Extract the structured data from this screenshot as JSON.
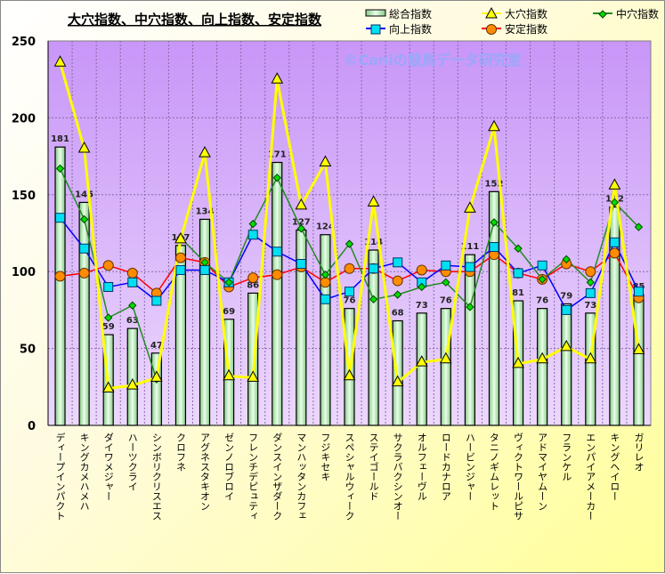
{
  "chart_data": {
    "type": "bar",
    "title": "大穴指数、中穴指数、向上指数、安定指数",
    "watermark": "©Caniの競馬データ研究室",
    "ylim": [
      0,
      250
    ],
    "yticks": [
      0,
      50,
      100,
      150,
      200,
      250
    ],
    "grid": true,
    "legend_position": "top-right",
    "categories": [
      "ディープインパクト",
      "キングカメハメハ",
      "ダイワメジャー",
      "ハーツクライ",
      "シンボリクリスエス",
      "クロフネ",
      "アグネスタキオン",
      "ゼンノロブロイ",
      "フレンチデピュティ",
      "ダンスインザダーク",
      "マンハッタンカフェ",
      "フジキセキ",
      "スペシャルウィーク",
      "ステイゴールド",
      "サクラバクシンオー",
      "オルフェーヴル",
      "ロードカナロア",
      "ハービンジャー",
      "タニノギムレット",
      "ヴィクトワールピサ",
      "アドマイヤムーン",
      "フランケル",
      "エンパイアメーカー",
      "キングヘイロー",
      "ガリレオ"
    ],
    "series": [
      {
        "name": "総合指数",
        "type": "bar",
        "color": "#c8f0c8",
        "values": [
          181,
          145,
          59,
          63,
          47,
          117,
          134,
          69,
          86,
          171,
          127,
          124,
          76,
          114,
          68,
          73,
          76,
          111,
          152,
          81,
          76,
          79,
          73,
          142,
          85
        ]
      },
      {
        "name": "大穴指数",
        "type": "line",
        "color": "#ffff00",
        "marker": "triangle",
        "values": [
          236,
          180,
          24,
          26,
          31,
          121,
          177,
          32,
          31,
          225,
          143,
          171,
          32,
          145,
          28,
          41,
          43,
          141,
          194,
          40,
          43,
          51,
          43,
          156,
          49
        ]
      },
      {
        "name": "中穴指数",
        "type": "line",
        "color": "#228b22",
        "marker": "diamond",
        "values": [
          167,
          134,
          70,
          78,
          30,
          122,
          106,
          93,
          131,
          161,
          128,
          98,
          118,
          82,
          85,
          90,
          93,
          77,
          132,
          115,
          95,
          108,
          93,
          145,
          129
        ]
      },
      {
        "name": "向上指数",
        "type": "line",
        "color": "#0000ff",
        "marker": "square",
        "values": [
          135,
          115,
          90,
          93,
          81,
          101,
          101,
          93,
          124,
          113,
          105,
          82,
          87,
          102,
          106,
          93,
          104,
          103,
          116,
          99,
          104,
          75,
          86,
          119,
          87
        ]
      },
      {
        "name": "安定指数",
        "type": "line",
        "color": "#ff0000",
        "marker": "circle",
        "values": [
          97,
          99,
          104,
          99,
          86,
          109,
          106,
          90,
          96,
          98,
          103,
          93,
          102,
          102,
          94,
          101,
          100,
          100,
          111,
          99,
          95,
          105,
          100,
          112,
          83
        ]
      }
    ]
  }
}
